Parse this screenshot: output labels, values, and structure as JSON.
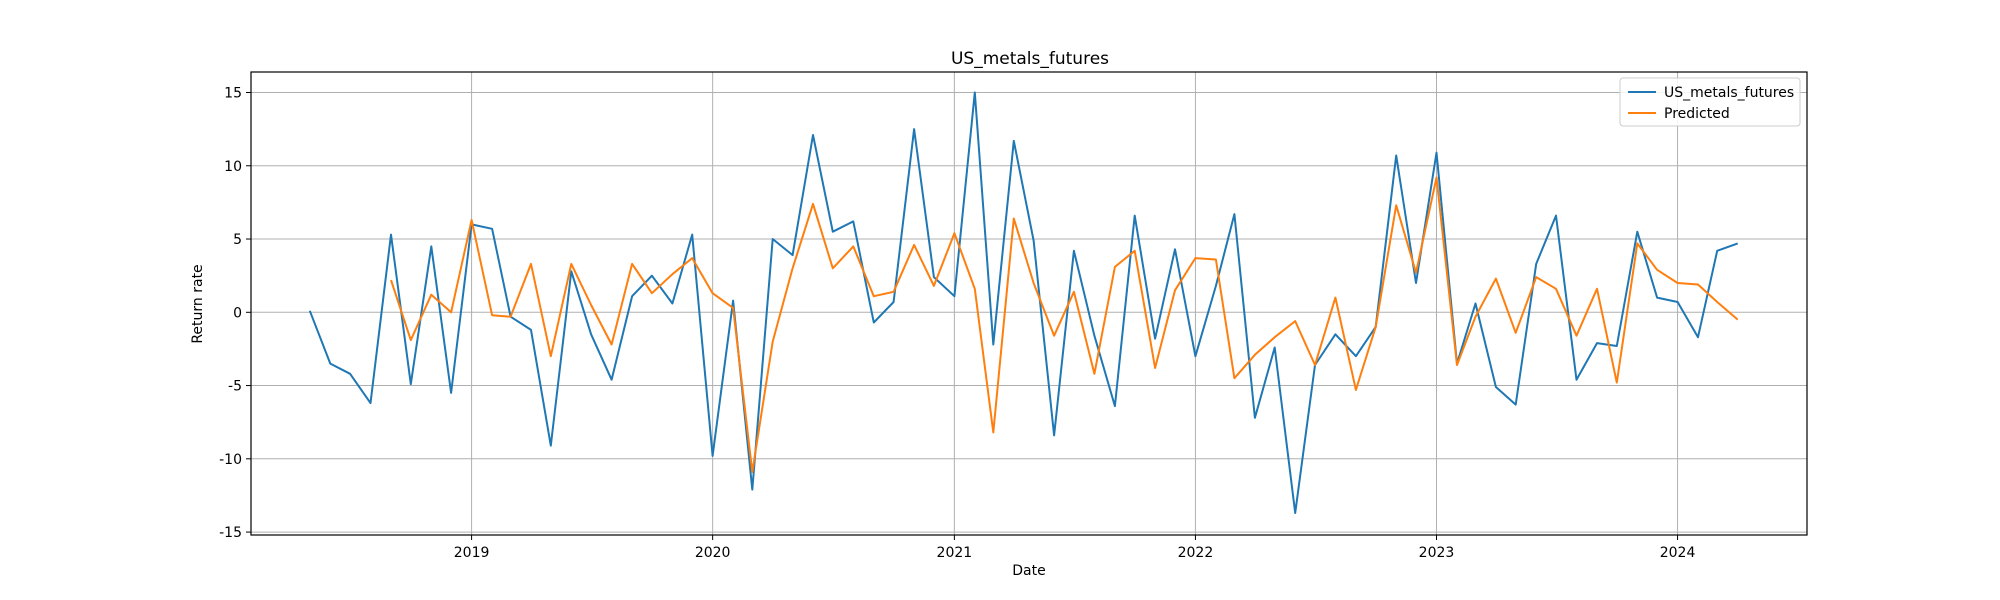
{
  "chart_data": {
    "type": "line",
    "title": "US_metals_futures",
    "xlabel": "Date",
    "ylabel": "Return rate",
    "x_ticks": [
      "2019",
      "2020",
      "2021",
      "2022",
      "2023",
      "2024"
    ],
    "y_ticks": [
      15,
      10,
      5,
      0,
      -5,
      -10,
      -15
    ],
    "xlim": [
      "2018-02-01",
      "2024-07-15"
    ],
    "ylim": [
      -15.2,
      16.4
    ],
    "grid": true,
    "legend_position": "top-right",
    "series": [
      {
        "name": "US_metals_futures",
        "color": "#1f77b4",
        "dates": [
          "2018-05-01",
          "2018-06-01",
          "2018-07-01",
          "2018-08-01",
          "2018-09-01",
          "2018-10-01",
          "2018-11-01",
          "2018-12-01",
          "2019-01-01",
          "2019-02-01",
          "2019-03-01",
          "2019-04-01",
          "2019-05-01",
          "2019-06-01",
          "2019-07-01",
          "2019-08-01",
          "2019-09-01",
          "2019-10-01",
          "2019-11-01",
          "2019-12-01",
          "2020-01-01",
          "2020-02-01",
          "2020-03-01",
          "2020-04-01",
          "2020-05-01",
          "2020-06-01",
          "2020-07-01",
          "2020-08-01",
          "2020-09-01",
          "2020-10-01",
          "2020-11-01",
          "2020-12-01",
          "2021-01-01",
          "2021-02-01",
          "2021-03-01",
          "2021-04-01",
          "2021-05-01",
          "2021-06-01",
          "2021-07-01",
          "2021-08-01",
          "2021-09-01",
          "2021-10-01",
          "2021-11-01",
          "2021-12-01",
          "2022-01-01",
          "2022-02-01",
          "2022-03-01",
          "2022-04-01",
          "2022-05-01",
          "2022-06-01",
          "2022-07-01",
          "2022-08-01",
          "2022-09-01",
          "2022-10-01",
          "2022-11-01",
          "2022-12-01",
          "2023-01-01",
          "2023-02-01",
          "2023-03-01",
          "2023-04-01",
          "2023-05-01",
          "2023-06-01",
          "2023-07-01",
          "2023-08-01",
          "2023-09-01",
          "2023-10-01",
          "2023-11-01",
          "2023-12-01",
          "2024-01-01",
          "2024-02-01",
          "2024-03-01",
          "2024-04-01"
        ],
        "values": [
          0.1,
          -3.5,
          -4.2,
          -6.2,
          5.3,
          -4.9,
          4.5,
          -5.5,
          6.0,
          5.7,
          -0.3,
          -1.2,
          -9.1,
          2.8,
          -1.5,
          -4.6,
          1.1,
          2.5,
          0.6,
          5.3,
          -9.8,
          0.8,
          -12.1,
          5.0,
          3.9,
          12.1,
          5.5,
          6.2,
          -0.7,
          0.7,
          12.5,
          2.4,
          1.1,
          15.0,
          -2.2,
          11.7,
          4.9,
          -8.4,
          4.2,
          -1.6,
          -6.4,
          6.6,
          -1.8,
          4.3,
          -3.0,
          1.8,
          6.7,
          -7.2,
          -2.4,
          -13.7,
          -3.6,
          -1.5,
          -3.0,
          -1.0,
          10.7,
          2.0,
          10.9,
          -3.5,
          0.6,
          -5.1,
          -6.3,
          3.3,
          6.6,
          -4.6,
          -2.1,
          -2.3,
          5.5,
          1.0,
          0.7,
          -1.7,
          4.2,
          4.7
        ]
      },
      {
        "name": "Predicted",
        "color": "#ff7f0e",
        "dates": [
          "2018-09-01",
          "2018-10-01",
          "2018-11-01",
          "2018-12-01",
          "2019-01-01",
          "2019-02-01",
          "2019-03-01",
          "2019-04-01",
          "2019-05-01",
          "2019-06-01",
          "2019-07-01",
          "2019-08-01",
          "2019-09-01",
          "2019-10-01",
          "2019-11-01",
          "2019-12-01",
          "2020-01-01",
          "2020-02-01",
          "2020-03-01",
          "2020-04-01",
          "2020-05-01",
          "2020-06-01",
          "2020-07-01",
          "2020-08-01",
          "2020-09-01",
          "2020-10-01",
          "2020-11-01",
          "2020-12-01",
          "2021-01-01",
          "2021-02-01",
          "2021-03-01",
          "2021-04-01",
          "2021-05-01",
          "2021-06-01",
          "2021-07-01",
          "2021-08-01",
          "2021-09-01",
          "2021-10-01",
          "2021-11-01",
          "2021-12-01",
          "2022-01-01",
          "2022-02-01",
          "2022-03-01",
          "2022-04-01",
          "2022-05-01",
          "2022-06-01",
          "2022-07-01",
          "2022-08-01",
          "2022-09-01",
          "2022-10-01",
          "2022-11-01",
          "2022-12-01",
          "2023-01-01",
          "2023-02-01",
          "2023-03-01",
          "2023-04-01",
          "2023-05-01",
          "2023-06-01",
          "2023-07-01",
          "2023-08-01",
          "2023-09-01",
          "2023-10-01",
          "2023-11-01",
          "2023-12-01",
          "2024-01-01",
          "2024-02-01",
          "2024-03-01",
          "2024-04-01"
        ],
        "values": [
          2.2,
          -1.9,
          1.2,
          0.0,
          6.3,
          -0.2,
          -0.3,
          3.3,
          -3.0,
          3.3,
          0.5,
          -2.2,
          3.3,
          1.3,
          2.6,
          3.7,
          1.3,
          0.3,
          -10.9,
          -2.0,
          3.0,
          7.4,
          3.0,
          4.5,
          1.1,
          1.4,
          4.6,
          1.8,
          5.4,
          1.6,
          -8.2,
          6.4,
          2.0,
          -1.6,
          1.4,
          -4.2,
          3.1,
          4.2,
          -3.8,
          1.5,
          3.7,
          3.6,
          -4.5,
          -2.9,
          -1.7,
          -0.6,
          -3.6,
          1.0,
          -5.3,
          -1.0,
          7.3,
          2.7,
          9.2,
          -3.6,
          -0.3,
          2.3,
          -1.4,
          2.4,
          1.6,
          -1.6,
          1.6,
          -4.8,
          4.7,
          2.9,
          2.0,
          1.9,
          0.7,
          -0.5
        ]
      }
    ]
  }
}
